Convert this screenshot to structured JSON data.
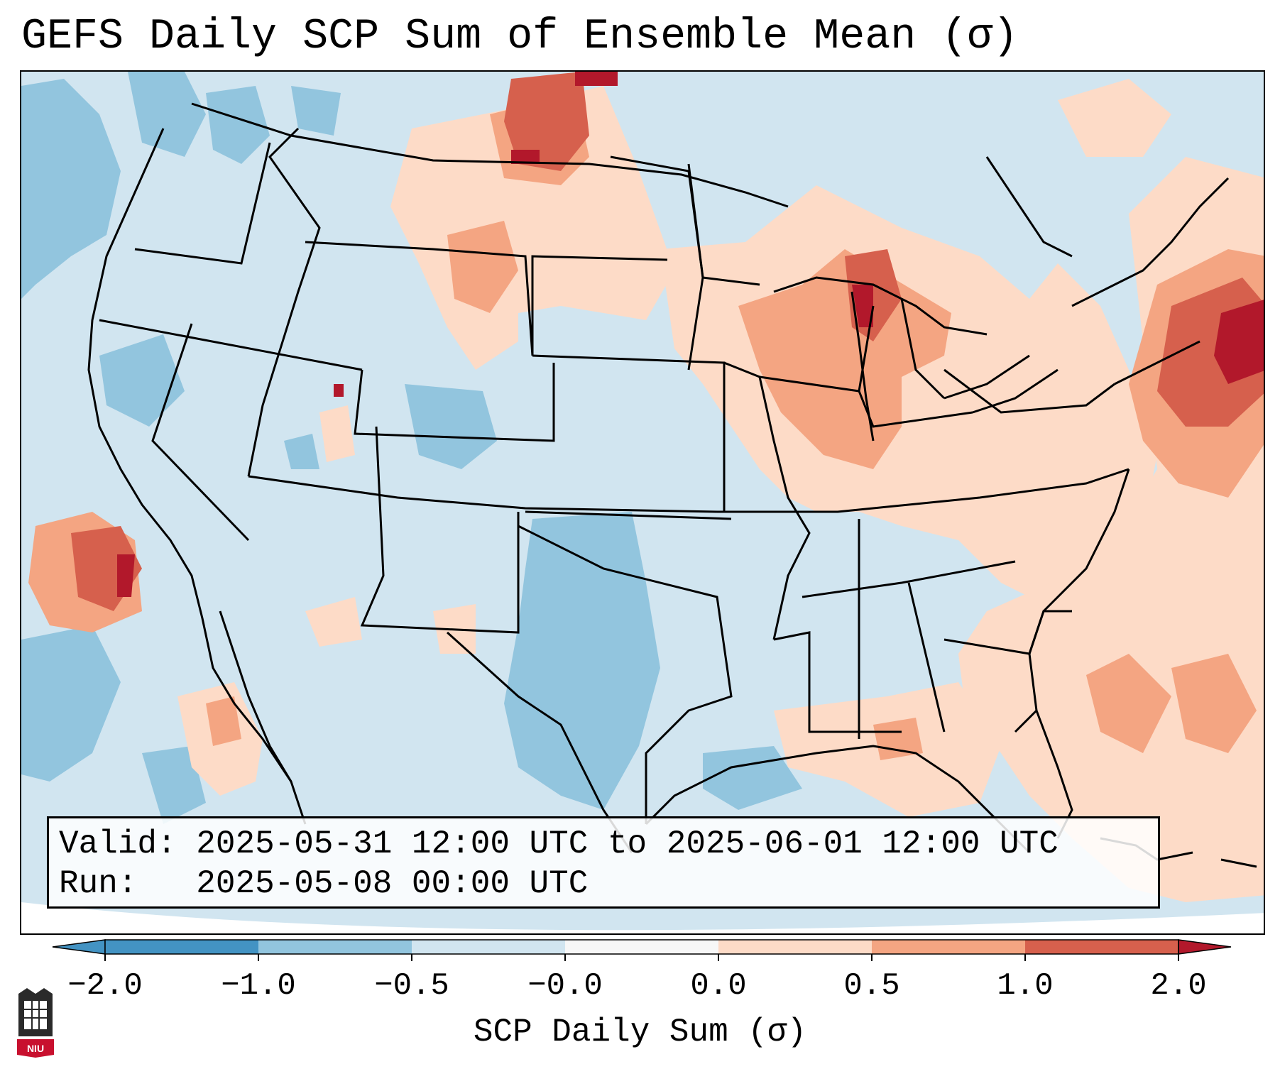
{
  "title": "GEFS Daily SCP Sum of Ensemble Mean (σ)",
  "info": {
    "valid_label": "Valid:",
    "valid_value": "2025-05-31 12:00 UTC to 2025-06-01 12:00 UTC",
    "run_label": "Run:",
    "run_value": "2025-05-08 00:00 UTC"
  },
  "colorbar": {
    "label": "SCP Daily Sum (σ)",
    "ticks": [
      "−2.0",
      "−1.0",
      "−0.5",
      "−0.0",
      "0.0",
      "0.5",
      "1.0",
      "2.0"
    ],
    "colors": [
      "#4393c3",
      "#92c5de",
      "#d1e5f0",
      "#f7f7f7",
      "#fddbc7",
      "#f4a582",
      "#d6604d",
      "#b2182b"
    ],
    "extend": "both"
  },
  "map": {
    "projection": "Lambert Conformal",
    "region": "CONUS",
    "anomaly_areas": [
      {
        "name": "upper-great-lakes-positive",
        "level": 1.0
      },
      {
        "name": "northern-plains-positive",
        "level": 1.0
      },
      {
        "name": "new-england-atlantic-positive",
        "level": 2.0
      },
      {
        "name": "pacific-positive",
        "level": 2.0
      },
      {
        "name": "texas-negative",
        "level": -1.0
      }
    ]
  },
  "logo": {
    "text": "NIU"
  }
}
